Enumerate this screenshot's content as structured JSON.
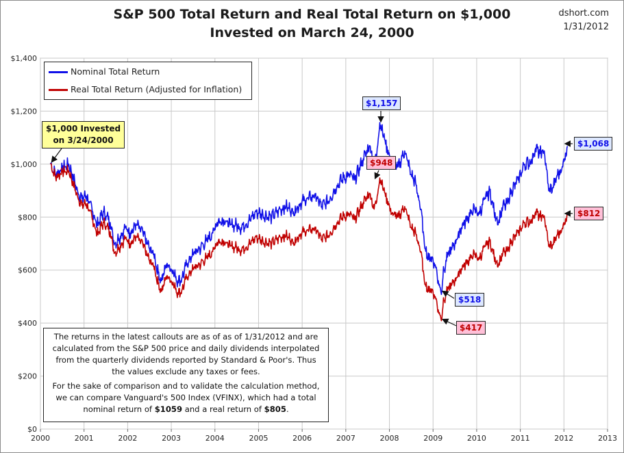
{
  "header": {
    "title_line1": "S&P 500 Total Return and Real Total Return on $1,000",
    "title_line2": "Invested on March 24, 2000",
    "source": "dshort.com",
    "date": "1/31/2012"
  },
  "legend": {
    "nominal": "Nominal Total Return",
    "real": "Real Total Return (Adjusted for Inflation)"
  },
  "callouts": {
    "start_line1": "$1,000 Invested",
    "start_line2": "on 3/24/2000",
    "nominal_peak": "$1,157",
    "real_peak": "$948",
    "nominal_trough": "$518",
    "real_trough": "$417",
    "nominal_latest": "$1,068",
    "real_latest": "$812"
  },
  "note": {
    "p1": "The returns in the latest callouts are as of as of 1/31/2012  and are calculated from the S&P 500  price and daily dividends interpolated from the quarterly dividends reported by Standard & Poor's. Thus the values exclude any taxes or fees.",
    "p2_a": "For the sake of comparison and to validate the calculation method, we can compare Vanguard's 500 Index (VFINX), which had a total nominal return of ",
    "p2_b": "$1059",
    "p2_c": "  and a real return of ",
    "p2_d": "$805",
    "p2_e": "."
  },
  "colors": {
    "nominal": "#1010e8",
    "real": "#c00000",
    "legend_start_bg": "#ffff99",
    "nominal_callout_bg": "#dde8ff",
    "real_callout_bg": "#ffc0d8",
    "grid": "#c8c8c8"
  },
  "chart_data": {
    "type": "line",
    "xlim": [
      2000,
      2013
    ],
    "ylim": [
      0,
      1400
    ],
    "x_ticks": [
      "2000",
      "2001",
      "2002",
      "2003",
      "2004",
      "2005",
      "2006",
      "2007",
      "2008",
      "2009",
      "2010",
      "2011",
      "2012",
      "2013"
    ],
    "y_ticks": [
      "$0",
      "$200",
      "$400",
      "$600",
      "$800",
      "$1,000",
      "$1,200",
      "$1,400"
    ],
    "grid": true,
    "legend_position": "top-left",
    "series": [
      {
        "name": "Nominal Total Return",
        "color": "#1010e8",
        "points": [
          [
            2000.23,
            1000
          ],
          [
            2000.35,
            960
          ],
          [
            2000.5,
            985
          ],
          [
            2000.65,
            1000
          ],
          [
            2000.75,
            950
          ],
          [
            2000.85,
            900
          ],
          [
            2000.95,
            870
          ],
          [
            2001.05,
            880
          ],
          [
            2001.2,
            820
          ],
          [
            2001.3,
            770
          ],
          [
            2001.45,
            820
          ],
          [
            2001.6,
            780
          ],
          [
            2001.7,
            700
          ],
          [
            2001.8,
            720
          ],
          [
            2001.95,
            760
          ],
          [
            2002.05,
            740
          ],
          [
            2002.2,
            770
          ],
          [
            2002.35,
            740
          ],
          [
            2002.5,
            680
          ],
          [
            2002.6,
            660
          ],
          [
            2002.7,
            590
          ],
          [
            2002.78,
            560
          ],
          [
            2002.88,
            620
          ],
          [
            2002.95,
            620
          ],
          [
            2003.05,
            590
          ],
          [
            2003.15,
            560
          ],
          [
            2003.22,
            560
          ],
          [
            2003.35,
            620
          ],
          [
            2003.5,
            660
          ],
          [
            2003.65,
            680
          ],
          [
            2003.8,
            710
          ],
          [
            2003.95,
            740
          ],
          [
            2004.05,
            780
          ],
          [
            2004.2,
            790
          ],
          [
            2004.35,
            770
          ],
          [
            2004.5,
            770
          ],
          [
            2004.6,
            760
          ],
          [
            2004.8,
            790
          ],
          [
            2004.95,
            820
          ],
          [
            2005.1,
            810
          ],
          [
            2005.3,
            800
          ],
          [
            2005.5,
            830
          ],
          [
            2005.65,
            840
          ],
          [
            2005.8,
            820
          ],
          [
            2005.95,
            850
          ],
          [
            2006.1,
            870
          ],
          [
            2006.3,
            880
          ],
          [
            2006.45,
            840
          ],
          [
            2006.6,
            860
          ],
          [
            2006.8,
            920
          ],
          [
            2006.95,
            950
          ],
          [
            2007.1,
            960
          ],
          [
            2007.2,
            940
          ],
          [
            2007.4,
            1020
          ],
          [
            2007.55,
            1070
          ],
          [
            2007.65,
            1000
          ],
          [
            2007.72,
            1060
          ],
          [
            2007.78,
            1157
          ],
          [
            2007.9,
            1090
          ],
          [
            2008.05,
            1000
          ],
          [
            2008.2,
            990
          ],
          [
            2008.35,
            1050
          ],
          [
            2008.5,
            960
          ],
          [
            2008.6,
            930
          ],
          [
            2008.72,
            830
          ],
          [
            2008.8,
            700
          ],
          [
            2008.9,
            640
          ],
          [
            2008.95,
            650
          ],
          [
            2009.05,
            620
          ],
          [
            2009.12,
            560
          ],
          [
            2009.18,
            518
          ],
          [
            2009.25,
            600
          ],
          [
            2009.35,
            660
          ],
          [
            2009.5,
            700
          ],
          [
            2009.65,
            760
          ],
          [
            2009.8,
            800
          ],
          [
            2009.95,
            830
          ],
          [
            2010.05,
            810
          ],
          [
            2010.2,
            870
          ],
          [
            2010.3,
            900
          ],
          [
            2010.4,
            820
          ],
          [
            2010.5,
            780
          ],
          [
            2010.6,
            840
          ],
          [
            2010.7,
            850
          ],
          [
            2010.8,
            900
          ],
          [
            2010.95,
            940
          ],
          [
            2011.1,
            1000
          ],
          [
            2011.25,
            1010
          ],
          [
            2011.35,
            1060
          ],
          [
            2011.45,
            1040
          ],
          [
            2011.55,
            1050
          ],
          [
            2011.6,
            980
          ],
          [
            2011.65,
            900
          ],
          [
            2011.75,
            910
          ],
          [
            2011.85,
            960
          ],
          [
            2011.95,
            980
          ],
          [
            2012.08,
            1068
          ]
        ]
      },
      {
        "name": "Real Total Return (Adjusted for Inflation)",
        "color": "#c00000",
        "points": [
          [
            2000.23,
            1000
          ],
          [
            2000.35,
            950
          ],
          [
            2000.5,
            970
          ],
          [
            2000.65,
            975
          ],
          [
            2000.75,
            925
          ],
          [
            2000.85,
            880
          ],
          [
            2000.95,
            845
          ],
          [
            2001.05,
            850
          ],
          [
            2001.2,
            790
          ],
          [
            2001.3,
            735
          ],
          [
            2001.45,
            780
          ],
          [
            2001.6,
            745
          ],
          [
            2001.7,
            665
          ],
          [
            2001.8,
            685
          ],
          [
            2001.95,
            720
          ],
          [
            2002.05,
            700
          ],
          [
            2002.2,
            725
          ],
          [
            2002.35,
            695
          ],
          [
            2002.5,
            635
          ],
          [
            2002.6,
            615
          ],
          [
            2002.7,
            550
          ],
          [
            2002.78,
            520
          ],
          [
            2002.88,
            575
          ],
          [
            2002.95,
            575
          ],
          [
            2003.05,
            545
          ],
          [
            2003.15,
            515
          ],
          [
            2003.22,
            515
          ],
          [
            2003.35,
            570
          ],
          [
            2003.5,
            605
          ],
          [
            2003.65,
            620
          ],
          [
            2003.8,
            645
          ],
          [
            2003.95,
            670
          ],
          [
            2004.05,
            705
          ],
          [
            2004.2,
            710
          ],
          [
            2004.35,
            690
          ],
          [
            2004.5,
            685
          ],
          [
            2004.6,
            675
          ],
          [
            2004.8,
            700
          ],
          [
            2004.95,
            725
          ],
          [
            2005.1,
            710
          ],
          [
            2005.3,
            700
          ],
          [
            2005.5,
            725
          ],
          [
            2005.65,
            730
          ],
          [
            2005.8,
            705
          ],
          [
            2005.95,
            735
          ],
          [
            2006.1,
            750
          ],
          [
            2006.3,
            755
          ],
          [
            2006.45,
            715
          ],
          [
            2006.6,
            730
          ],
          [
            2006.8,
            780
          ],
          [
            2006.95,
            805
          ],
          [
            2007.1,
            810
          ],
          [
            2007.2,
            790
          ],
          [
            2007.4,
            855
          ],
          [
            2007.55,
            890
          ],
          [
            2007.65,
            830
          ],
          [
            2007.72,
            880
          ],
          [
            2007.78,
            948
          ],
          [
            2007.9,
            890
          ],
          [
            2008.05,
            815
          ],
          [
            2008.2,
            800
          ],
          [
            2008.35,
            840
          ],
          [
            2008.5,
            760
          ],
          [
            2008.6,
            740
          ],
          [
            2008.72,
            670
          ],
          [
            2008.8,
            560
          ],
          [
            2008.9,
            520
          ],
          [
            2008.95,
            530
          ],
          [
            2009.05,
            500
          ],
          [
            2009.12,
            450
          ],
          [
            2009.18,
            417
          ],
          [
            2009.25,
            485
          ],
          [
            2009.35,
            530
          ],
          [
            2009.5,
            560
          ],
          [
            2009.65,
            605
          ],
          [
            2009.8,
            635
          ],
          [
            2009.95,
            660
          ],
          [
            2010.05,
            640
          ],
          [
            2010.2,
            690
          ],
          [
            2010.3,
            710
          ],
          [
            2010.4,
            650
          ],
          [
            2010.5,
            620
          ],
          [
            2010.6,
            665
          ],
          [
            2010.7,
            670
          ],
          [
            2010.8,
            710
          ],
          [
            2010.95,
            740
          ],
          [
            2011.1,
            780
          ],
          [
            2011.25,
            785
          ],
          [
            2011.35,
            820
          ],
          [
            2011.45,
            800
          ],
          [
            2011.55,
            805
          ],
          [
            2011.6,
            750
          ],
          [
            2011.65,
            690
          ],
          [
            2011.75,
            695
          ],
          [
            2011.85,
            735
          ],
          [
            2011.95,
            750
          ],
          [
            2012.08,
            812
          ]
        ]
      }
    ]
  }
}
